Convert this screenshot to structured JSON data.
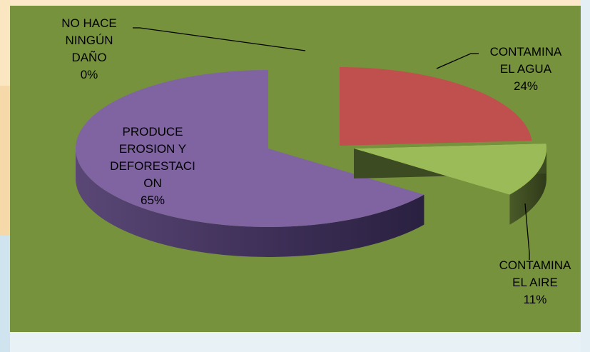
{
  "chart_data": {
    "type": "pie",
    "style": "3d-exploded",
    "title": "",
    "slices": [
      {
        "label_lines": [
          "CONTAMINA",
          "EL AGUA"
        ],
        "value": 24,
        "pct": "24%",
        "color": "#c0504d",
        "side": "#6e2220",
        "key": "agua"
      },
      {
        "label_lines": [
          "CONTAMINA",
          "EL AIRE"
        ],
        "value": 11,
        "pct": "11%",
        "color": "#9bbb59",
        "side": "#3d4b22",
        "key": "aire"
      },
      {
        "label_lines": [
          "PRODUCE",
          "EROSION Y",
          "DEFORESTACI",
          "ON"
        ],
        "value": 65,
        "pct": "65%",
        "color": "#8064a2",
        "side": "#3a2d52",
        "key": "erosion"
      },
      {
        "label_lines": [
          "NO HACE",
          "NINGÚN",
          "DAÑO"
        ],
        "value": 0,
        "pct": "0%",
        "color": "#4f81bd",
        "side": "#22395a",
        "key": "ningun"
      }
    ],
    "legend": "none",
    "background": "#76923c"
  }
}
